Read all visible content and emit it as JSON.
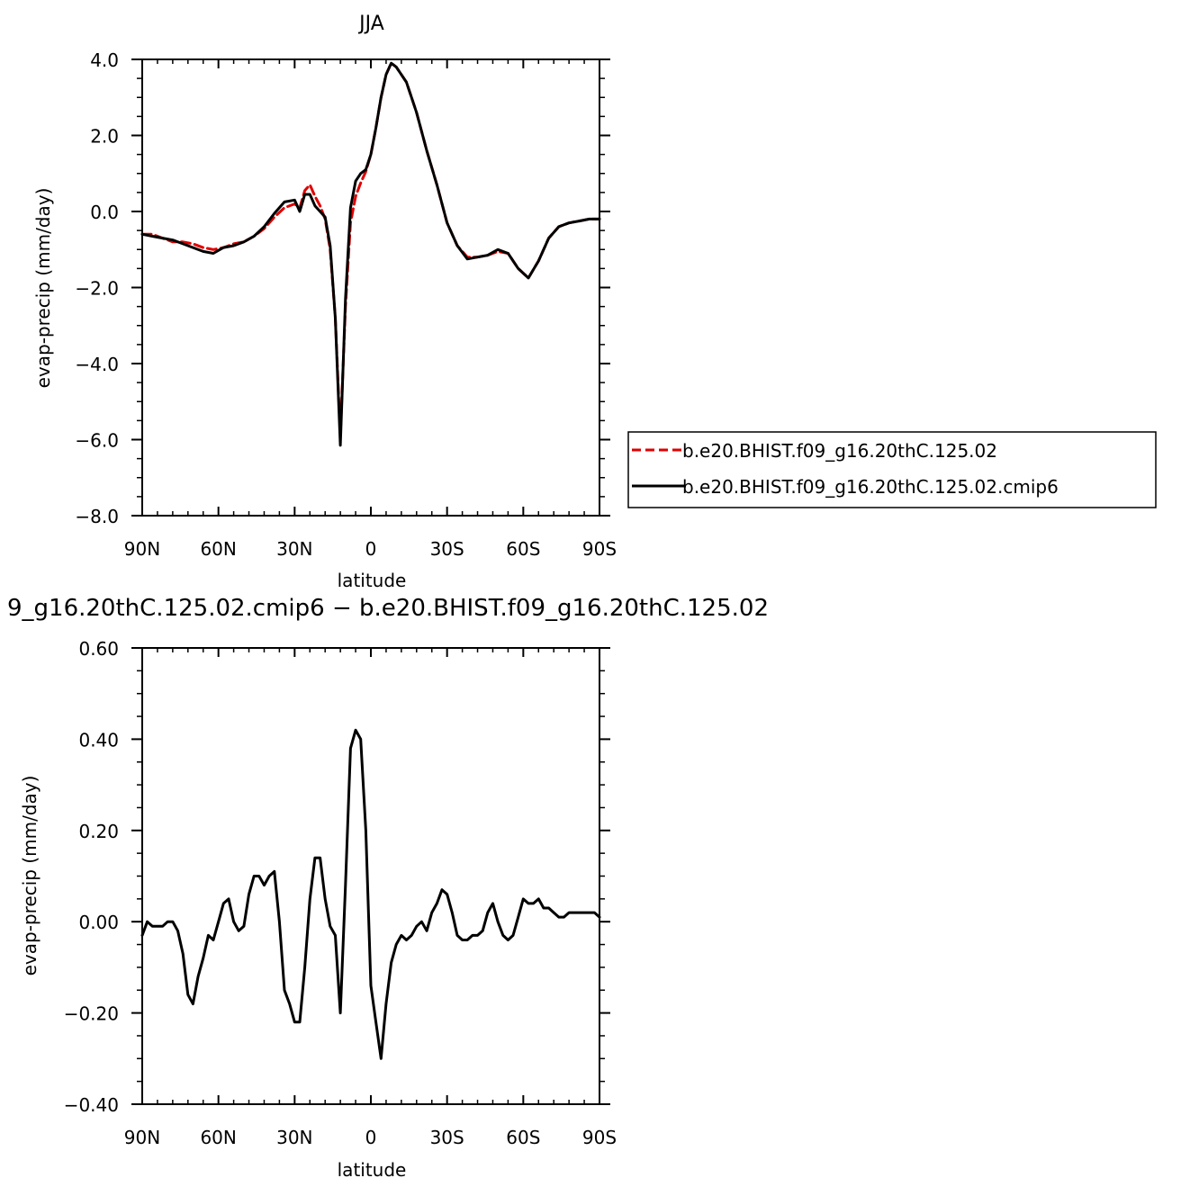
{
  "chart_data": [
    {
      "type": "line",
      "title": "JJA",
      "xlabel": "latitude",
      "ylabel": "evap-precip (mm/day)",
      "xlim": [
        90,
        -90
      ],
      "ylim": [
        -8.0,
        4.0
      ],
      "x_ticks": [
        90,
        60,
        30,
        0,
        -30,
        -60,
        -90
      ],
      "x_tick_labels": [
        "90N",
        "60N",
        "30N",
        "0",
        "30S",
        "60S",
        "90S"
      ],
      "y_ticks": [
        -8,
        -6,
        -4,
        -2,
        0,
        2,
        4
      ],
      "y_tick_labels": [
        "−8.0",
        "−6.0",
        "−4.0",
        "−2.0",
        "0.0",
        "2.0",
        "4.0"
      ],
      "legend_position": "right",
      "series": [
        {
          "name": "b.e20.BHIST.f09_g16.20thC.125.02",
          "color": "#e00000",
          "style": "dashed",
          "x": [
            90,
            86,
            82,
            78,
            74,
            70,
            66,
            62,
            58,
            54,
            50,
            46,
            42,
            38,
            34,
            30,
            28,
            26,
            24,
            22,
            20,
            18,
            16,
            14,
            12,
            10,
            8,
            6,
            4,
            2,
            0,
            -2,
            -4,
            -6,
            -8,
            -10,
            -12,
            -14,
            -16,
            -18,
            -22,
            -26,
            -30,
            -34,
            -38,
            -42,
            -46,
            -50,
            -54,
            -58,
            -62,
            -66,
            -70,
            -74,
            -78,
            -82,
            -86,
            -90
          ],
          "y": [
            -0.6,
            -0.6,
            -0.7,
            -0.8,
            -0.8,
            -0.85,
            -0.95,
            -1.0,
            -0.95,
            -0.85,
            -0.8,
            -0.65,
            -0.45,
            -0.15,
            0.1,
            0.2,
            0.1,
            0.55,
            0.7,
            0.4,
            0.15,
            -0.2,
            -1.0,
            -2.8,
            -5.9,
            -2.5,
            -0.3,
            0.4,
            0.75,
            1.05,
            1.5,
            2.2,
            3.0,
            3.6,
            3.9,
            3.8,
            3.6,
            3.4,
            3.0,
            2.6,
            1.6,
            0.7,
            -0.3,
            -0.9,
            -1.2,
            -1.2,
            -1.15,
            -1.05,
            -1.1,
            -1.5,
            -1.75,
            -1.3,
            -0.7,
            -0.4,
            -0.3,
            -0.25,
            -0.2,
            -0.2
          ]
        },
        {
          "name": "b.e20.BHIST.f09_g16.20thC.125.02.cmip6",
          "color": "#000000",
          "style": "solid",
          "x": [
            90,
            86,
            82,
            78,
            74,
            70,
            66,
            62,
            58,
            54,
            50,
            46,
            42,
            38,
            34,
            30,
            28,
            26,
            24,
            22,
            20,
            18,
            16,
            14,
            12,
            10,
            8,
            6,
            4,
            2,
            0,
            -2,
            -4,
            -6,
            -8,
            -10,
            -12,
            -14,
            -16,
            -18,
            -22,
            -26,
            -30,
            -34,
            -38,
            -42,
            -46,
            -50,
            -54,
            -58,
            -62,
            -66,
            -70,
            -74,
            -78,
            -82,
            -86,
            -90
          ],
          "y": [
            -0.6,
            -0.65,
            -0.7,
            -0.75,
            -0.85,
            -0.95,
            -1.05,
            -1.1,
            -0.95,
            -0.9,
            -0.8,
            -0.65,
            -0.4,
            -0.05,
            0.25,
            0.3,
            0.0,
            0.45,
            0.45,
            0.15,
            0.0,
            -0.15,
            -0.9,
            -2.8,
            -6.15,
            -2.3,
            0.1,
            0.8,
            1.0,
            1.1,
            1.5,
            2.2,
            3.0,
            3.6,
            3.9,
            3.8,
            3.6,
            3.4,
            3.0,
            2.6,
            1.6,
            0.7,
            -0.3,
            -0.9,
            -1.25,
            -1.2,
            -1.15,
            -1.0,
            -1.1,
            -1.5,
            -1.75,
            -1.3,
            -0.7,
            -0.4,
            -0.3,
            -0.25,
            -0.2,
            -0.2
          ]
        }
      ]
    },
    {
      "type": "line",
      "title": "9_g16.20thC.125.02.cmip6 − b.e20.BHIST.f09_g16.20thC.125.02",
      "xlabel": "latitude",
      "ylabel": "evap-precip (mm/day)",
      "xlim": [
        90,
        -90
      ],
      "ylim": [
        -0.4,
        0.6
      ],
      "x_ticks": [
        90,
        60,
        30,
        0,
        -30,
        -60,
        -90
      ],
      "x_tick_labels": [
        "90N",
        "60N",
        "30N",
        "0",
        "30S",
        "60S",
        "90S"
      ],
      "y_ticks": [
        -0.4,
        -0.2,
        0,
        0.2,
        0.4,
        0.6
      ],
      "y_tick_labels": [
        "−0.40",
        "−0.20",
        "0.00",
        "0.20",
        "0.40",
        "0.60"
      ],
      "series": [
        {
          "color": "#000000",
          "style": "solid",
          "x": [
            90,
            88,
            86,
            84,
            82,
            80,
            78,
            76,
            74,
            72,
            70,
            68,
            66,
            64,
            62,
            60,
            58,
            56,
            54,
            52,
            50,
            48,
            46,
            44,
            42,
            40,
            38,
            36,
            34,
            32,
            30,
            28,
            26,
            24,
            22,
            20,
            18,
            16,
            14,
            12,
            10,
            8,
            6,
            4,
            2,
            0,
            -2,
            -4,
            -6,
            -8,
            -10,
            -12,
            -14,
            -16,
            -18,
            -20,
            -22,
            -24,
            -26,
            -28,
            -30,
            -32,
            -34,
            -36,
            -38,
            -40,
            -42,
            -44,
            -46,
            -48,
            -50,
            -52,
            -54,
            -56,
            -58,
            -60,
            -62,
            -64,
            -66,
            -68,
            -70,
            -72,
            -74,
            -76,
            -78,
            -80,
            -82,
            -84,
            -86,
            -88,
            -90
          ],
          "y": [
            -0.03,
            0.0,
            -0.01,
            -0.01,
            -0.01,
            0.0,
            0.0,
            -0.02,
            -0.07,
            -0.16,
            -0.18,
            -0.12,
            -0.08,
            -0.03,
            -0.04,
            0.0,
            0.04,
            0.05,
            0.0,
            -0.02,
            -0.01,
            0.06,
            0.1,
            0.1,
            0.08,
            0.1,
            0.11,
            0.0,
            -0.15,
            -0.18,
            -0.22,
            -0.22,
            -0.1,
            0.05,
            0.14,
            0.14,
            0.05,
            -0.01,
            -0.03,
            -0.2,
            0.08,
            0.38,
            0.42,
            0.4,
            0.2,
            -0.14,
            -0.22,
            -0.3,
            -0.18,
            -0.09,
            -0.05,
            -0.03,
            -0.04,
            -0.03,
            -0.01,
            0.0,
            -0.02,
            0.02,
            0.04,
            0.07,
            0.06,
            0.02,
            -0.03,
            -0.04,
            -0.04,
            -0.03,
            -0.03,
            -0.02,
            0.02,
            0.04,
            0.0,
            -0.03,
            -0.04,
            -0.03,
            0.01,
            0.05,
            0.04,
            0.04,
            0.05,
            0.03,
            0.03,
            0.02,
            0.01,
            0.01,
            0.02,
            0.02,
            0.02,
            0.02,
            0.02,
            0.02,
            0.01
          ]
        }
      ]
    }
  ]
}
